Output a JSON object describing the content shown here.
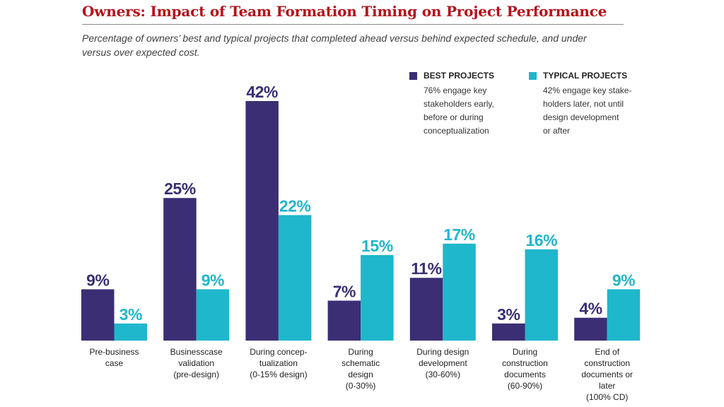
{
  "title": "Owners: Impact of Team Formation Timing on Project Performance",
  "subtitle": "Percentage of owners’ best and typical projects that completed ahead versus behind expected schedule, and under versus over expected cost.",
  "colors": {
    "best": "#3b2e74",
    "typical": "#1fb7cc",
    "title": "#b5121b"
  },
  "legend": [
    {
      "name": "BEST PROJECTS",
      "desc": [
        "76% engage key",
        "stakeholders early,",
        "before or during",
        "conceptualization"
      ]
    },
    {
      "name": "TYPICAL PROJECTS",
      "desc": [
        "42% engage key stake-",
        "holders later, not until",
        "design development",
        "or after"
      ]
    }
  ],
  "chart_data": {
    "type": "bar",
    "categories": [
      [
        "Pre-business",
        "case"
      ],
      [
        "Businesscase",
        "validation",
        "(pre-design)"
      ],
      [
        "During concep-",
        "tualization",
        "(0-15% design)"
      ],
      [
        "During",
        "schematic",
        "design",
        "(0-30%)"
      ],
      [
        "During design",
        "development",
        "(30-60%)"
      ],
      [
        "During",
        "construction",
        "documents",
        "(60-90%)"
      ],
      [
        "End of",
        "construction",
        "documents or",
        "later",
        "(100% CD)"
      ]
    ],
    "series": [
      {
        "name": "BEST PROJECTS",
        "values": [
          9,
          25,
          42,
          7,
          11,
          3,
          4
        ],
        "labels": [
          "9%",
          "25%",
          "42%",
          "7%",
          "11%",
          "3%",
          "4%"
        ]
      },
      {
        "name": "TYPICAL PROJECTS",
        "values": [
          3,
          9,
          22,
          15,
          17,
          16,
          9
        ],
        "labels": [
          "3%",
          "9%",
          "22%",
          "15%",
          "17%",
          "16%",
          "9%"
        ]
      }
    ],
    "ylim": [
      0,
      42
    ],
    "grid": false,
    "legend_position": "top-right"
  }
}
